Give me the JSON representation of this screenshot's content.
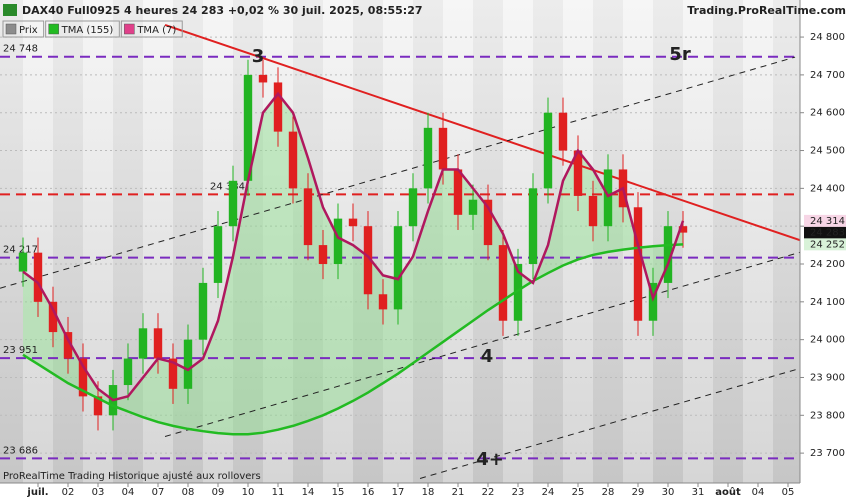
{
  "chart_data": {
    "type": "candlestick",
    "title": "DAX40 Full0925 4 heures 24 283 +0,02 % 30 juil. 2025, 08:55:27",
    "source": "Trading.ProRealTime.com",
    "footer": "ProRealTime Trading  Historique ajusté aux rollovers",
    "x": [
      0,
      1,
      2,
      3,
      4,
      5,
      6,
      7,
      8,
      9,
      10,
      11,
      12,
      13,
      14,
      15,
      16,
      17,
      18,
      19,
      20,
      21,
      22,
      23,
      24,
      25,
      26,
      27,
      28,
      29,
      30,
      31,
      32,
      33,
      34,
      35,
      36,
      37,
      38,
      39,
      40,
      41,
      42,
      43,
      44
    ],
    "series": [
      {
        "name": "Prix",
        "color": "#8c8c8c",
        "up_color": "#22b422",
        "down_color": "#e02020",
        "last_label": "24 283",
        "open": [
          24180,
          24230,
          24100,
          24020,
          23950,
          23850,
          23800,
          23880,
          23950,
          24030,
          23950,
          23870,
          24000,
          24150,
          24300,
          24420,
          24700,
          24680,
          24550,
          24400,
          24250,
          24200,
          24320,
          24300,
          24120,
          24080,
          24300,
          24400,
          24560,
          24450,
          24330,
          24370,
          24250,
          24050,
          24200,
          24400,
          24600,
          24500,
          24380,
          24300,
          24450,
          24350,
          24050,
          24150,
          24300
        ],
        "high": [
          24270,
          24270,
          24140,
          24060,
          23990,
          23890,
          23920,
          23990,
          24070,
          24070,
          23990,
          24040,
          24190,
          24340,
          24460,
          24740,
          24740,
          24720,
          24590,
          24440,
          24290,
          24360,
          24360,
          24340,
          24160,
          24340,
          24440,
          24600,
          24600,
          24490,
          24410,
          24410,
          24290,
          24240,
          24440,
          24640,
          24640,
          24540,
          24420,
          24490,
          24490,
          24390,
          24190,
          24340,
          24340
        ],
        "low": [
          24140,
          24060,
          23980,
          23910,
          23810,
          23760,
          23760,
          23840,
          23910,
          23910,
          23830,
          23830,
          23960,
          24110,
          24260,
          24380,
          24640,
          24510,
          24360,
          24210,
          24160,
          24160,
          24260,
          24080,
          24040,
          24040,
          24260,
          24360,
          24410,
          24290,
          24290,
          24210,
          24010,
          24010,
          24160,
          24360,
          24460,
          24340,
          24260,
          24260,
          24310,
          24010,
          24010,
          24110,
          24243
        ],
        "close": [
          24230,
          24100,
          24020,
          23950,
          23850,
          23800,
          23880,
          23950,
          24030,
          23950,
          23870,
          24000,
          24150,
          24300,
          24420,
          24700,
          24680,
          24550,
          24400,
          24250,
          24200,
          24320,
          24300,
          24120,
          24080,
          24300,
          24400,
          24560,
          24450,
          24330,
          24370,
          24250,
          24050,
          24200,
          24400,
          24600,
          24500,
          24380,
          24300,
          24450,
          24350,
          24050,
          24150,
          24300,
          24283
        ]
      },
      {
        "name": "TMA (155)",
        "color": "#22bb22",
        "last_label": "24 252",
        "values": [
          23960,
          23935,
          23910,
          23885,
          23865,
          23845,
          23825,
          23810,
          23795,
          23782,
          23772,
          23764,
          23758,
          23753,
          23750,
          23750,
          23754,
          23762,
          23772,
          23785,
          23800,
          23818,
          23838,
          23860,
          23885,
          23910,
          23938,
          23966,
          23994,
          24022,
          24050,
          24078,
          24104,
          24130,
          24155,
          24176,
          24196,
          24212,
          24224,
          24232,
          24238,
          24243,
          24247,
          24250,
          24252
        ]
      },
      {
        "name": "TMA (7)",
        "color": "#e0408a",
        "last_label": "24 314",
        "values": [
          24180,
          24150,
          24080,
          24000,
          23930,
          23870,
          23840,
          23850,
          23900,
          23950,
          23940,
          23920,
          23950,
          24050,
          24220,
          24420,
          24600,
          24650,
          24600,
          24480,
          24350,
          24270,
          24250,
          24220,
          24170,
          24160,
          24220,
          24340,
          24450,
          24450,
          24400,
          24350,
          24280,
          24180,
          24150,
          24250,
          24420,
          24500,
          24450,
          24380,
          24400,
          24250,
          24110,
          24200,
          24314
        ]
      }
    ],
    "levels": [
      {
        "value": 24748,
        "label": "24 748",
        "color": "#7a2bbf"
      },
      {
        "value": 24384,
        "label": "24 384",
        "color": "#e02020"
      },
      {
        "value": 24217,
        "label": "24 217",
        "color": "#7a2bbf"
      },
      {
        "value": 23951,
        "label": "23 951",
        "color": "#7a2bbf"
      },
      {
        "value": 23686,
        "label": "23 686",
        "color": "#7a2bbf"
      }
    ],
    "trend_lines": [
      {
        "points": [
          [
            9.47,
            24832
          ],
          [
            51.8,
            24263
          ]
        ],
        "color": "#e02020",
        "dashed": false
      },
      {
        "points": [
          [
            -1.53,
            24136
          ],
          [
            51.47,
            24747
          ]
        ],
        "color": "#222222",
        "dashed": true
      },
      {
        "points": [
          [
            9.47,
            23744
          ],
          [
            51.8,
            24231
          ]
        ],
        "color": "#222222",
        "dashed": true
      },
      {
        "points": [
          [
            26.47,
            23633
          ],
          [
            51.8,
            23924
          ]
        ],
        "color": "#222222",
        "dashed": true
      }
    ],
    "wave_labels": [
      "3",
      "5r",
      "4",
      "4+"
    ],
    "xlim": [
      -1.533,
      51.8
    ],
    "ylim": [
      23621,
      24898
    ],
    "xticks": [
      {
        "value": 1,
        "label": "juil."
      },
      {
        "value": 3,
        "label": "02"
      },
      {
        "value": 5,
        "label": "03"
      },
      {
        "value": 7,
        "label": "04"
      },
      {
        "value": 9,
        "label": "07"
      },
      {
        "value": 11,
        "label": "08"
      },
      {
        "value": 13,
        "label": "09"
      },
      {
        "value": 15,
        "label": "10"
      },
      {
        "value": 17,
        "label": "11"
      },
      {
        "value": 19,
        "label": "14"
      },
      {
        "value": 21,
        "label": "15"
      },
      {
        "value": 23,
        "label": "16"
      },
      {
        "value": 25,
        "label": "17"
      },
      {
        "value": 27,
        "label": "18"
      },
      {
        "value": 29,
        "label": "21"
      },
      {
        "value": 31,
        "label": "22"
      },
      {
        "value": 33,
        "label": "23"
      },
      {
        "value": 35,
        "label": "24"
      },
      {
        "value": 37,
        "label": "25"
      },
      {
        "value": 39,
        "label": "28"
      },
      {
        "value": 41,
        "label": "29"
      },
      {
        "value": 43,
        "label": "30"
      },
      {
        "value": 45,
        "label": "31"
      },
      {
        "value": 47,
        "label": "août"
      },
      {
        "value": 49,
        "label": "04"
      },
      {
        "value": 51,
        "label": "05"
      }
    ],
    "yticks": [
      {
        "value": 23700,
        "label": "23 700"
      },
      {
        "value": 23800,
        "label": "23 800"
      },
      {
        "value": 23900,
        "label": "23 900"
      },
      {
        "value": 24000,
        "label": "24 000"
      },
      {
        "value": 24100,
        "label": "24 100"
      },
      {
        "value": 24200,
        "label": "24 200"
      },
      {
        "value": 24300,
        "label": "24 300"
      },
      {
        "value": 24400,
        "label": "24 400"
      },
      {
        "value": 24500,
        "label": "24 500"
      },
      {
        "value": 24600,
        "label": "24 600"
      },
      {
        "value": 24700,
        "label": "24 700"
      },
      {
        "value": 24800,
        "label": "24 800"
      }
    ],
    "grid": true,
    "legend": "upper left"
  }
}
